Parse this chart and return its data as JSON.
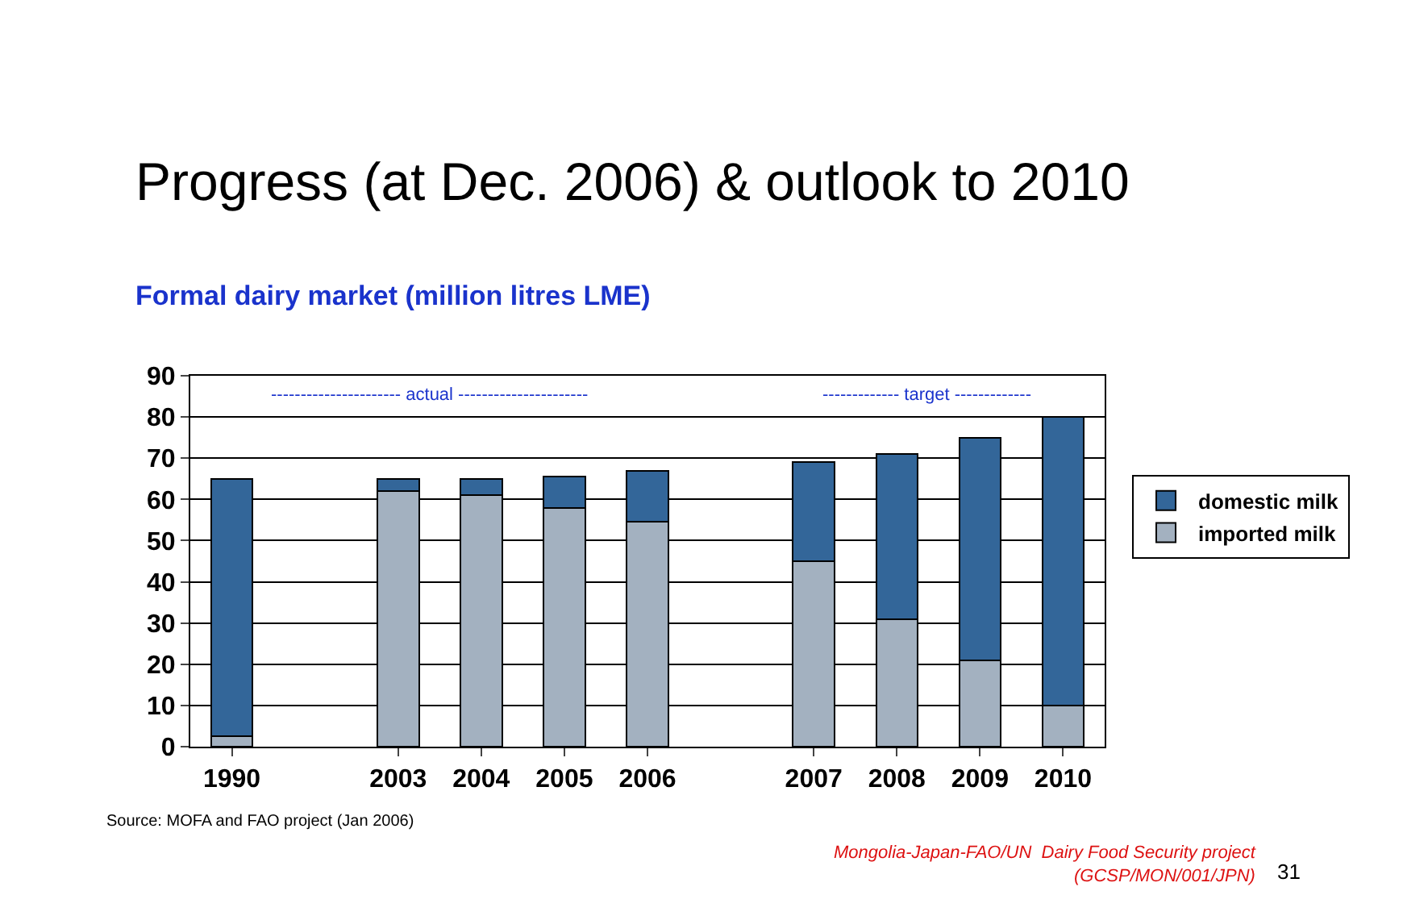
{
  "chart_data": {
    "type": "bar",
    "stacked": true,
    "title": "Progress (at Dec. 2006) & outlook to 2010",
    "subtitle": "Formal dairy market (million litres LME)",
    "categories": [
      "1990",
      null,
      "2003",
      "2004",
      "2005",
      "2006",
      null,
      "2007",
      "2008",
      "2009",
      "2010"
    ],
    "series": [
      {
        "name": "imported milk",
        "color": "#a3b1c0",
        "values": [
          2.5,
          null,
          62,
          61,
          58,
          54.5,
          null,
          45,
          31,
          21,
          10
        ]
      },
      {
        "name": "domestic milk",
        "color": "#336699",
        "values": [
          62.5,
          null,
          3,
          4,
          7.5,
          12.5,
          null,
          24,
          40,
          54,
          70
        ]
      }
    ],
    "ylim": [
      0,
      90
    ],
    "yticks": [
      0,
      10,
      20,
      30,
      40,
      50,
      60,
      70,
      80,
      90
    ],
    "grid": "y",
    "legend": "right",
    "annotations": [
      "---------------------- actual ----------------------",
      "------------- target -------------",
      "Source: MOFA and FAO project (Jan 2006)",
      "Mongolia-Japan-FAO/UN  Dairy Food Security project\n(GCSP/MON/001/JPN)",
      "31"
    ]
  }
}
